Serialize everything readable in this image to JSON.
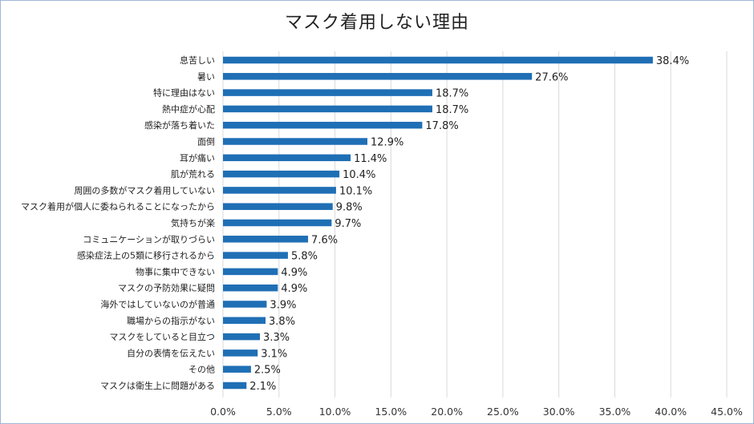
{
  "chart_data": {
    "type": "bar",
    "orientation": "horizontal",
    "title": "マスク着用しない理由",
    "categories": [
      "息苦しい",
      "暑い",
      "特に理由はない",
      "熱中症が心配",
      "感染が落ち着いた",
      "面倒",
      "耳が痛い",
      "肌が荒れる",
      "周囲の多数がマスク着用していない",
      "マスク着用が個人に委ねられることになったから",
      "気持ちが楽",
      "コミュニケーションが取りづらい",
      "感染症法上の5類に移行されるから",
      "物事に集中できない",
      "マスクの予防効果に疑問",
      "海外ではしていないのが普通",
      "職場からの指示がない",
      "マスクをしていると目立つ",
      "自分の表情を伝えたい",
      "その他",
      "マスクは衛生上に問題がある"
    ],
    "values": [
      38.4,
      27.6,
      18.7,
      18.7,
      17.8,
      12.9,
      11.4,
      10.4,
      10.1,
      9.8,
      9.7,
      7.6,
      5.8,
      4.9,
      4.9,
      3.9,
      3.8,
      3.3,
      3.1,
      2.5,
      2.1
    ],
    "value_labels": [
      "38.4%",
      "27.6%",
      "18.7%",
      "18.7%",
      "17.8%",
      "12.9%",
      "11.4%",
      "10.4%",
      "10.1%",
      "9.8%",
      "9.7%",
      "7.6%",
      "5.8%",
      "4.9%",
      "4.9%",
      "3.9%",
      "3.8%",
      "3.3%",
      "3.1%",
      "2.5%",
      "2.1%"
    ],
    "xlim": [
      0,
      45
    ],
    "x_ticks": [
      0,
      5,
      10,
      15,
      20,
      25,
      30,
      35,
      40,
      45
    ],
    "x_tick_labels": [
      "0.0%",
      "5.0%",
      "10.0%",
      "15.0%",
      "20.0%",
      "25.0%",
      "30.0%",
      "35.0%",
      "40.0%",
      "45.0%"
    ],
    "grid": true,
    "legend": "none",
    "bar_color": "#1f6fb5",
    "xlabel": "",
    "ylabel": ""
  }
}
